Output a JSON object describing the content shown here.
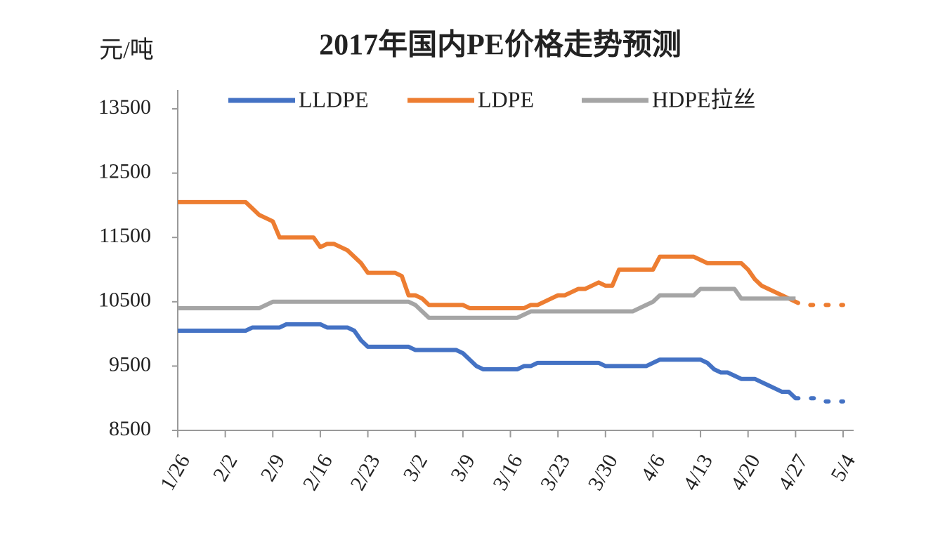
{
  "chart_data": {
    "type": "line",
    "title": "2017年国内PE价格走势预测",
    "y_label": "元/吨",
    "categories": [
      "1/26",
      null,
      null,
      null,
      null,
      null,
      null,
      "2/2",
      null,
      null,
      null,
      null,
      null,
      null,
      "2/9",
      null,
      null,
      null,
      null,
      null,
      null,
      "2/16",
      null,
      null,
      null,
      null,
      null,
      null,
      "2/23",
      null,
      null,
      null,
      null,
      null,
      null,
      "3/2",
      null,
      null,
      null,
      null,
      null,
      null,
      "3/9",
      null,
      null,
      null,
      null,
      null,
      null,
      "3/16",
      null,
      null,
      null,
      null,
      null,
      null,
      "3/23",
      null,
      null,
      null,
      null,
      null,
      null,
      "3/30",
      null,
      null,
      null,
      null,
      null,
      null,
      "4/6",
      null,
      null,
      null,
      null,
      null,
      null,
      "4/13",
      null,
      null,
      null,
      null,
      null,
      null,
      "4/20",
      null,
      null,
      null,
      null,
      null,
      null,
      "4/27",
      null,
      null,
      null,
      null,
      null,
      null,
      "5/4"
    ],
    "series": [
      {
        "name": "LLDPE",
        "color": "#4472c4",
        "values": [
          10050,
          10050,
          10050,
          10050,
          10050,
          10050,
          10050,
          10050,
          10050,
          10050,
          10050,
          10100,
          10100,
          10100,
          10100,
          10100,
          10150,
          10150,
          10150,
          10150,
          10150,
          10150,
          10100,
          10100,
          10100,
          10100,
          10050,
          9900,
          9800,
          9800,
          9800,
          9800,
          9800,
          9800,
          9800,
          9750,
          9750,
          9750,
          9750,
          9750,
          9750,
          9750,
          9700,
          9600,
          9500,
          9450,
          9450,
          9450,
          9450,
          9450,
          9450,
          9500,
          9500,
          9550,
          9550,
          9550,
          9550,
          9550,
          9550,
          9550,
          9550,
          9550,
          9550,
          9500,
          9500,
          9500,
          9500,
          9500,
          9500,
          9500,
          9550,
          9600,
          9600,
          9600,
          9600,
          9600,
          9600,
          9600,
          9550,
          9450,
          9400,
          9400,
          9350,
          9300,
          9300,
          9300,
          9250,
          9200,
          9150,
          9100,
          9100,
          9000,
          null,
          null,
          null,
          null,
          null,
          null,
          null
        ],
        "forecast": [
          null,
          null,
          null,
          null,
          null,
          null,
          null,
          null,
          null,
          null,
          null,
          null,
          null,
          null,
          null,
          null,
          null,
          null,
          null,
          null,
          null,
          null,
          null,
          null,
          null,
          null,
          null,
          null,
          null,
          null,
          null,
          null,
          null,
          null,
          null,
          null,
          null,
          null,
          null,
          null,
          null,
          null,
          null,
          null,
          null,
          null,
          null,
          null,
          null,
          null,
          null,
          null,
          null,
          null,
          null,
          null,
          null,
          null,
          null,
          null,
          null,
          null,
          null,
          null,
          null,
          null,
          null,
          null,
          null,
          null,
          null,
          null,
          null,
          null,
          null,
          null,
          null,
          null,
          null,
          null,
          null,
          null,
          null,
          null,
          null,
          null,
          null,
          null,
          null,
          null,
          null,
          9000,
          9000,
          9000,
          9000,
          8950,
          8950,
          8950,
          8950
        ]
      },
      {
        "name": "LDPE",
        "color": "#ed7d31",
        "values": [
          12050,
          12050,
          12050,
          12050,
          12050,
          12050,
          12050,
          12050,
          12050,
          12050,
          12050,
          11950,
          11850,
          11800,
          11750,
          11500,
          11500,
          11500,
          11500,
          11500,
          11500,
          11350,
          11400,
          11400,
          11350,
          11300,
          11200,
          11100,
          10950,
          10950,
          10950,
          10950,
          10950,
          10900,
          10600,
          10600,
          10550,
          10450,
          10450,
          10450,
          10450,
          10450,
          10450,
          10400,
          10400,
          10400,
          10400,
          10400,
          10400,
          10400,
          10400,
          10400,
          10450,
          10450,
          10500,
          10550,
          10600,
          10600,
          10650,
          10700,
          10700,
          10750,
          10800,
          10750,
          10750,
          11000,
          11000,
          11000,
          11000,
          11000,
          11000,
          11200,
          11200,
          11200,
          11200,
          11200,
          11200,
          11150,
          11100,
          11100,
          11100,
          11100,
          11100,
          11100,
          11000,
          10850,
          10750,
          10700,
          10650,
          10600,
          10550,
          10500,
          null,
          null,
          null,
          null,
          null,
          null,
          null
        ],
        "forecast": [
          null,
          null,
          null,
          null,
          null,
          null,
          null,
          null,
          null,
          null,
          null,
          null,
          null,
          null,
          null,
          null,
          null,
          null,
          null,
          null,
          null,
          null,
          null,
          null,
          null,
          null,
          null,
          null,
          null,
          null,
          null,
          null,
          null,
          null,
          null,
          null,
          null,
          null,
          null,
          null,
          null,
          null,
          null,
          null,
          null,
          null,
          null,
          null,
          null,
          null,
          null,
          null,
          null,
          null,
          null,
          null,
          null,
          null,
          null,
          null,
          null,
          null,
          null,
          null,
          null,
          null,
          null,
          null,
          null,
          null,
          null,
          null,
          null,
          null,
          null,
          null,
          null,
          null,
          null,
          null,
          null,
          null,
          null,
          null,
          null,
          null,
          null,
          null,
          null,
          null,
          null,
          10500,
          10450,
          10450,
          10450,
          10450,
          10450,
          10450,
          10450
        ]
      },
      {
        "name": "HDPE拉丝",
        "color": "#a5a5a5",
        "values": [
          10400,
          10400,
          10400,
          10400,
          10400,
          10400,
          10400,
          10400,
          10400,
          10400,
          10400,
          10400,
          10400,
          10450,
          10500,
          10500,
          10500,
          10500,
          10500,
          10500,
          10500,
          10500,
          10500,
          10500,
          10500,
          10500,
          10500,
          10500,
          10500,
          10500,
          10500,
          10500,
          10500,
          10500,
          10500,
          10450,
          10350,
          10250,
          10250,
          10250,
          10250,
          10250,
          10250,
          10250,
          10250,
          10250,
          10250,
          10250,
          10250,
          10250,
          10250,
          10300,
          10350,
          10350,
          10350,
          10350,
          10350,
          10350,
          10350,
          10350,
          10350,
          10350,
          10350,
          10350,
          10350,
          10350,
          10350,
          10350,
          10400,
          10450,
          10500,
          10600,
          10600,
          10600,
          10600,
          10600,
          10600,
          10700,
          10700,
          10700,
          10700,
          10700,
          10700,
          10550,
          10550,
          10550,
          10550,
          10550,
          10550,
          10550,
          10550,
          10550,
          null,
          null,
          null,
          null,
          null,
          null,
          null
        ]
      }
    ],
    "ylim": [
      8500,
      13500
    ],
    "yticks": [
      8500,
      9500,
      10500,
      11500,
      12500,
      13500
    ],
    "legend": "top"
  }
}
